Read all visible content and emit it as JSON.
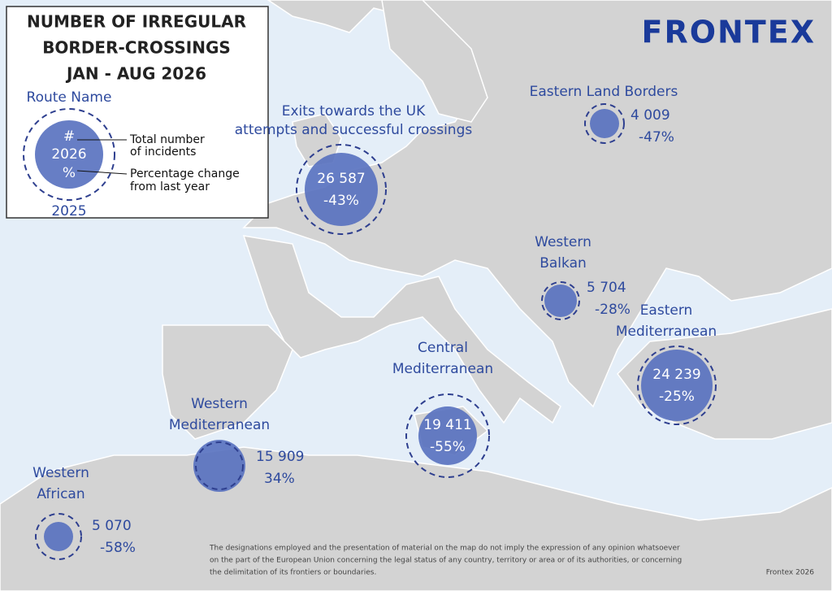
{
  "legend": {
    "title": [
      "NUMBER OF IRREGULAR",
      "BORDER-CROSSINGS",
      "JAN - AUG 2026"
    ],
    "route_name": "Route Name",
    "count_symbol": "#",
    "current_year": "2026",
    "change_symbol": "%",
    "previous_year": "2025",
    "count_note": [
      "Total number",
      "of incidents"
    ],
    "change_note": [
      "Percentage change",
      "from last year"
    ]
  },
  "logo": "FRONTEX",
  "routes": [
    {
      "name": [
        "Exits towards the UK"
      ],
      "note": "attempts and successful crossings",
      "count": "26 587",
      "change": "-43%"
    },
    {
      "name": [
        "Eastern Land Borders"
      ],
      "count": "4 009",
      "change": "-47%"
    },
    {
      "name": [
        "Western",
        "Balkan"
      ],
      "count": "5 704",
      "change": "-28%"
    },
    {
      "name": [
        "Eastern",
        "Mediterranean"
      ],
      "count": "24 239",
      "change": "-25%"
    },
    {
      "name": [
        "Central",
        "Mediterranean"
      ],
      "count": "19 411",
      "change": "-55%"
    },
    {
      "name": [
        "Western",
        "Mediterranean"
      ],
      "count": "15 909",
      "change": "34%"
    },
    {
      "name": [
        "Western",
        "African"
      ],
      "count": "5 070",
      "change": "-58%"
    }
  ],
  "footer": {
    "disclaimer": [
      "The designations employed and the presentation of material on the map do not imply the expression of any opinion whatsoever",
      "on the part of the European Union concerning the legal status of any country, territory or area or of its authorities, or concerning",
      "the delimitation of its frontiers or boundaries."
    ],
    "credit": "Frontex 2026"
  }
}
